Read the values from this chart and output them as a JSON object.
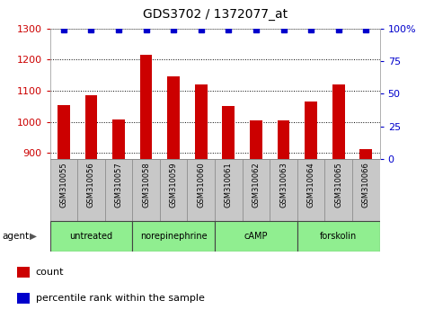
{
  "title": "GDS3702 / 1372077_at",
  "samples": [
    "GSM310055",
    "GSM310056",
    "GSM310057",
    "GSM310058",
    "GSM310059",
    "GSM310060",
    "GSM310061",
    "GSM310062",
    "GSM310063",
    "GSM310064",
    "GSM310065",
    "GSM310066"
  ],
  "counts": [
    1055,
    1085,
    1008,
    1215,
    1145,
    1120,
    1052,
    1005,
    1003,
    1065,
    1120,
    912
  ],
  "percentile_values": [
    99,
    99,
    99,
    99,
    99,
    99,
    99,
    99,
    99,
    99,
    99,
    99
  ],
  "bar_color": "#cc0000",
  "dot_color": "#0000cc",
  "ylim_left": [
    880,
    1300
  ],
  "ylim_right": [
    0,
    100
  ],
  "yticks_left": [
    900,
    1000,
    1100,
    1200,
    1300
  ],
  "yticks_right": [
    0,
    25,
    50,
    75,
    100
  ],
  "ytick_labels_right": [
    "0",
    "25",
    "50",
    "75",
    "100%"
  ],
  "groups": [
    {
      "label": "untreated",
      "start": 0,
      "end": 3,
      "color": "#90ee90"
    },
    {
      "label": "norepinephrine",
      "start": 3,
      "end": 6,
      "color": "#90ee90"
    },
    {
      "label": "cAMP",
      "start": 6,
      "end": 9,
      "color": "#90ee90"
    },
    {
      "label": "forskolin",
      "start": 9,
      "end": 12,
      "color": "#90ee90"
    }
  ],
  "agent_label": "agent",
  "legend_count_label": "count",
  "legend_percentile_label": "percentile rank within the sample",
  "background_color": "#ffffff",
  "tick_label_color_left": "#cc0000",
  "tick_label_color_right": "#0000cc",
  "sample_box_color": "#c8c8c8",
  "bar_width": 0.45,
  "dot_size": 5
}
